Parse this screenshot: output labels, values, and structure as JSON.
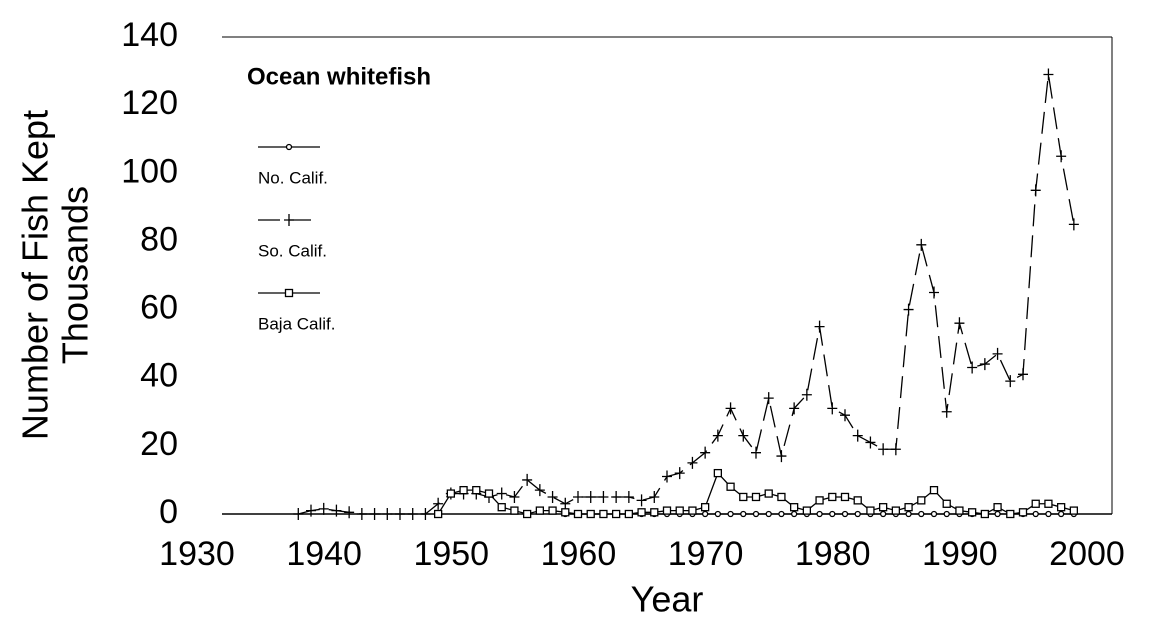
{
  "chart_data": {
    "type": "line",
    "title": "Ocean whitefish",
    "x_label": "Year",
    "y_label": [
      "Number of Fish Kept",
      "Thousands"
    ],
    "x": [
      1936,
      1937,
      1938,
      1939,
      1940,
      1941,
      1942,
      1943,
      1944,
      1945,
      1946,
      1947,
      1948,
      1949,
      1950,
      1951,
      1952,
      1953,
      1954,
      1955,
      1956,
      1957,
      1958,
      1959,
      1960,
      1961,
      1962,
      1963,
      1964,
      1965,
      1966,
      1967,
      1968,
      1969,
      1970,
      1971,
      1972,
      1973,
      1974,
      1975,
      1976,
      1977,
      1978,
      1979,
      1980,
      1981,
      1982,
      1983,
      1984,
      1985,
      1986,
      1987,
      1988,
      1989,
      1990,
      1991,
      1992,
      1993,
      1994,
      1995,
      1996,
      1997
    ],
    "series": [
      {
        "name": "No. Calif.",
        "color": "#000000",
        "marker": "circle",
        "dash": "solid",
        "values": [
          null,
          null,
          null,
          null,
          null,
          null,
          null,
          null,
          null,
          null,
          null,
          null,
          null,
          null,
          null,
          null,
          null,
          null,
          null,
          null,
          null,
          0,
          0,
          0,
          0,
          0,
          0,
          0,
          0,
          0,
          0,
          0,
          0,
          0,
          0,
          0,
          0,
          0,
          0,
          0,
          0,
          0,
          0,
          0,
          0,
          0,
          0,
          0,
          0,
          0,
          0,
          0,
          0,
          0,
          0,
          0,
          0,
          0,
          0,
          0,
          0,
          0
        ]
      },
      {
        "name": "So. Calif.",
        "color": "#000000",
        "marker": "plus",
        "dash": "dashed",
        "values": [
          0,
          1,
          1.5,
          1,
          0.5,
          0,
          0,
          0,
          0,
          0,
          0,
          3,
          6,
          6,
          6,
          5,
          6,
          5,
          10,
          7,
          5,
          3,
          5,
          5,
          5,
          5,
          5,
          4,
          5,
          11,
          12,
          15,
          18,
          23,
          31,
          23,
          18,
          34,
          17,
          31,
          35,
          55,
          31,
          29,
          23,
          21,
          19,
          19,
          60,
          79,
          65,
          30,
          56,
          43,
          44,
          47,
          39,
          41,
          95,
          129,
          105,
          85
        ]
      },
      {
        "name": "Baja Calif.",
        "color": "#000000",
        "marker": "square",
        "dash": "solid",
        "values": [
          null,
          null,
          null,
          null,
          null,
          null,
          null,
          null,
          null,
          null,
          null,
          0,
          6,
          7,
          7,
          6,
          2,
          1,
          0,
          1,
          1,
          0.5,
          0,
          0,
          0,
          0,
          0,
          0.5,
          0.5,
          1,
          1,
          1,
          2,
          12,
          8,
          5,
          5,
          6,
          5,
          2,
          1,
          4,
          5,
          5,
          4,
          1,
          2,
          1,
          2,
          4,
          7,
          3,
          1,
          0.5,
          0,
          2,
          0,
          0.5,
          3,
          3,
          2,
          1
        ]
      }
    ],
    "xlim": [
      1930,
      2000
    ],
    "xticks": [
      1930,
      1940,
      1950,
      1960,
      1970,
      1980,
      1990,
      2000
    ],
    "ylim": [
      0,
      140
    ],
    "yticks": [
      0,
      20,
      40,
      60,
      80,
      100,
      120,
      140
    ],
    "grid": false,
    "legend_position": "upper left"
  }
}
